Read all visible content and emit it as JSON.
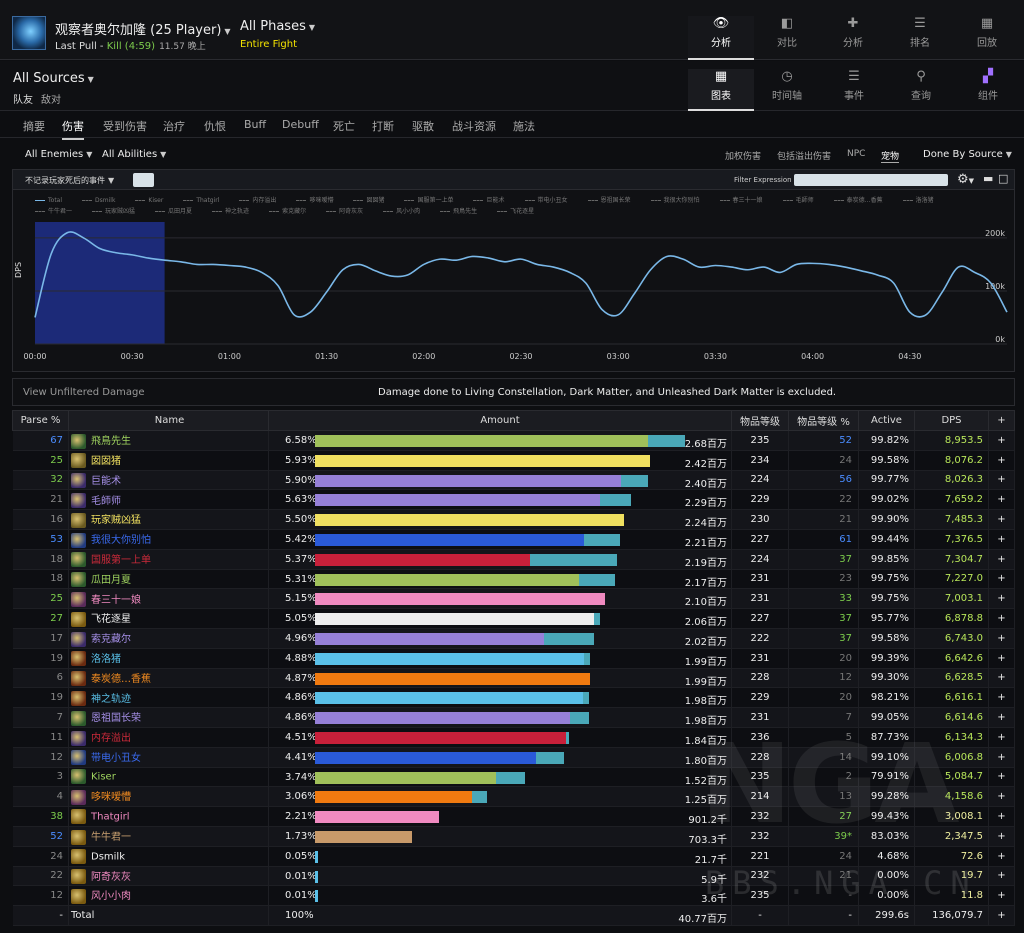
{
  "header": {
    "boss_name": "观察者奥尔加隆 (25 Player)",
    "pull_label": "Last Pull -",
    "pull_kill": "Kill (4:59)",
    "pull_sub": "11.57 晚上",
    "phases": "All Phases",
    "fight": "Entire Fight",
    "nav": [
      {
        "label": "分析",
        "icon": "eye-icon",
        "active": true
      },
      {
        "label": "对比",
        "icon": "compare-icon",
        "active": false
      },
      {
        "label": "分析",
        "icon": "puzzle-icon",
        "active": false
      },
      {
        "label": "排名",
        "icon": "ranking-icon",
        "active": false
      },
      {
        "label": "回放",
        "icon": "replay-icon",
        "active": false
      }
    ]
  },
  "sources": {
    "label": "All Sources",
    "party": "队友",
    "enemy": "敌对"
  },
  "views": [
    {
      "label": "图表",
      "icon": "table-icon",
      "active": true
    },
    {
      "label": "时间轴",
      "icon": "clock-icon",
      "active": false
    },
    {
      "label": "事件",
      "icon": "list-icon",
      "active": false
    },
    {
      "label": "查询",
      "icon": "pin-icon",
      "active": false
    },
    {
      "label": "组件",
      "icon": "components-icon",
      "active": false
    }
  ],
  "tabs": [
    "摘要",
    "伤害",
    "受到伤害",
    "治疗",
    "仇恨",
    "Buff",
    "Debuff",
    "死亡",
    "打断",
    "驱散",
    "战斗资源",
    "施法"
  ],
  "filters": {
    "enemies": "All Enemies",
    "abilities": "All Abilities",
    "right": [
      "加权伤害",
      "包括溢出伤害",
      "NPC",
      "宠物"
    ],
    "done_by": "Done By Source",
    "event_filter": "不记录玩家死后的事件",
    "filter_expression": "Filter Expression"
  },
  "chart_data": {
    "type": "line",
    "title": "",
    "ylabel": "DPS",
    "xlabel": "",
    "x_ticks": [
      "00:00",
      "00:30",
      "01:00",
      "01:30",
      "02:00",
      "02:30",
      "03:00",
      "03:30",
      "04:00",
      "04:30"
    ],
    "y_ticks": [
      "200k",
      "100k",
      "0k"
    ],
    "ylim": [
      0,
      230000
    ],
    "xlim": [
      0,
      300
    ],
    "selected_range": [
      0,
      40
    ],
    "legend": [
      "Total",
      "Dsmilk",
      "Kiser",
      "Thatgirl",
      "内存溢出",
      "哆咪嗳懵",
      "囡囡猪",
      "国服第一上单",
      "巨能术",
      "带电小丑女",
      "恩祖国长荣",
      "我很大你别怕",
      "春三十一娘",
      "毛師师",
      "泰炭德…香蕉",
      "洛洛猪",
      "牛牛君一",
      "玩家贼凶猛",
      "瓜田月夏",
      "神之轨迹",
      "索克藏尔",
      "阿奇灰灰",
      "风小小肉",
      "飛鳥先生",
      "飞花逐星"
    ],
    "series": [
      {
        "name": "Total",
        "x": [
          0,
          5,
          10,
          15,
          20,
          25,
          30,
          35,
          40,
          45,
          50,
          55,
          60,
          65,
          70,
          75,
          80,
          85,
          90,
          95,
          100,
          105,
          110,
          115,
          120,
          125,
          130,
          135,
          140,
          145,
          150,
          155,
          160,
          165,
          170,
          175,
          180,
          185,
          190,
          195,
          200,
          205,
          210,
          215,
          220,
          225,
          230,
          235,
          240,
          245,
          250,
          255,
          260,
          265,
          270,
          275,
          280,
          285,
          290,
          295,
          300
        ],
        "values": [
          50000,
          170000,
          210000,
          200000,
          180000,
          172000,
          168000,
          162000,
          158000,
          155000,
          150000,
          150000,
          148000,
          145000,
          135000,
          110000,
          55000,
          60000,
          98000,
          140000,
          150000,
          138000,
          128000,
          130000,
          150000,
          160000,
          158000,
          165000,
          162000,
          155000,
          160000,
          150000,
          145000,
          135000,
          115000,
          65000,
          55000,
          95000,
          140000,
          165000,
          160000,
          145000,
          148000,
          145000,
          140000,
          145000,
          135000,
          150000,
          152000,
          150000,
          145000,
          138000,
          130000,
          115000,
          60000,
          55000,
          98000,
          145000,
          135000,
          115000,
          60000
        ]
      }
    ]
  },
  "info": {
    "unfiltered": "View Unfiltered Damage",
    "excluded": "Damage done to Living Constellation, Dark Matter, and Unleashed Dark Matter is excluded."
  },
  "table": {
    "headers": [
      "Parse %",
      "Name",
      "Amount",
      "物品等级",
      "物品等级 %",
      "Active",
      "DPS",
      "+"
    ],
    "rows": [
      {
        "parse": "67",
        "parse_color": "#4a8cff",
        "name": "飛鳥先生",
        "name_color": "#9fd35f",
        "icon": "#2c5a2c",
        "pct": "6.58%",
        "frac": 1.0,
        "split": 0.9,
        "bar": "#a0c05a",
        "amount": "2.68百万",
        "ilvl": "235",
        "ilp": "52",
        "ilp_color": "#4a8cff",
        "active": "99.82%",
        "dps": "8,953.5",
        "dps_color": "#b8e65a"
      },
      {
        "parse": "25",
        "parse_color": "#7ccc4c",
        "name": "囡囡猪",
        "name_color": "#f0e060",
        "icon": "#6a5a20",
        "pct": "5.93%",
        "frac": 0.905,
        "split": 1.0,
        "bar": "#f0e060",
        "amount": "2.42百万",
        "ilvl": "234",
        "ilp": "24",
        "ilp_color": "#777",
        "active": "99.58%",
        "dps": "8,076.2",
        "dps_color": "#b8e65a"
      },
      {
        "parse": "32",
        "parse_color": "#7ccc4c",
        "name": "巨能术",
        "name_color": "#a690e8",
        "icon": "#3a2a6a",
        "pct": "5.90%",
        "frac": 0.9,
        "split": 0.92,
        "bar": "#9680d8",
        "amount": "2.40百万",
        "ilvl": "224",
        "ilp": "56",
        "ilp_color": "#4a8cff",
        "active": "99.77%",
        "dps": "8,026.3",
        "dps_color": "#b8e65a"
      },
      {
        "parse": "21",
        "parse_color": "#888",
        "name": "毛師师",
        "name_color": "#a690e8",
        "icon": "#3a2a6a",
        "pct": "5.63%",
        "frac": 0.855,
        "split": 0.9,
        "bar": "#9680d8",
        "amount": "2.29百万",
        "ilvl": "229",
        "ilp": "22",
        "ilp_color": "#777",
        "active": "99.02%",
        "dps": "7,659.2",
        "dps_color": "#b8e65a"
      },
      {
        "parse": "16",
        "parse_color": "#888",
        "name": "玩家贼凶猛",
        "name_color": "#f0e060",
        "icon": "#6a5a20",
        "pct": "5.50%",
        "frac": 0.836,
        "split": 1.0,
        "bar": "#f0e060",
        "amount": "2.24百万",
        "ilvl": "230",
        "ilp": "21",
        "ilp_color": "#777",
        "active": "99.90%",
        "dps": "7,485.3",
        "dps_color": "#b8e65a"
      },
      {
        "parse": "53",
        "parse_color": "#4a8cff",
        "name": "我很大你别怕",
        "name_color": "#3a6aee",
        "icon": "#203a80",
        "pct": "5.42%",
        "frac": 0.825,
        "split": 0.88,
        "bar": "#2a5ad8",
        "amount": "2.21百万",
        "ilvl": "227",
        "ilp": "61",
        "ilp_color": "#4a8cff",
        "active": "99.44%",
        "dps": "7,376.5",
        "dps_color": "#b8e65a"
      },
      {
        "parse": "18",
        "parse_color": "#888",
        "name": "国服第一上单",
        "name_color": "#cc2a3a",
        "icon": "#2c5a2c",
        "pct": "5.37%",
        "frac": 0.817,
        "split": 0.71,
        "bar": "#c8203a",
        "amount": "2.19百万",
        "ilvl": "224",
        "ilp": "37",
        "ilp_color": "#7ccc4c",
        "active": "99.85%",
        "dps": "7,304.7",
        "dps_color": "#b8e65a"
      },
      {
        "parse": "18",
        "parse_color": "#888",
        "name": "瓜田月夏",
        "name_color": "#9fd35f",
        "icon": "#2c5a2c",
        "pct": "5.31%",
        "frac": 0.81,
        "split": 0.88,
        "bar": "#a0c05a",
        "amount": "2.17百万",
        "ilvl": "231",
        "ilp": "23",
        "ilp_color": "#777",
        "active": "99.75%",
        "dps": "7,227.0",
        "dps_color": "#b8e65a"
      },
      {
        "parse": "25",
        "parse_color": "#7ccc4c",
        "name": "春三十一娘",
        "name_color": "#f08ac0",
        "icon": "#5a2a5a",
        "pct": "5.15%",
        "frac": 0.784,
        "split": 1.0,
        "bar": "#f08ac0",
        "amount": "2.10百万",
        "ilvl": "231",
        "ilp": "33",
        "ilp_color": "#7ccc4c",
        "active": "99.75%",
        "dps": "7,003.1",
        "dps_color": "#b8e65a"
      },
      {
        "parse": "27",
        "parse_color": "#7ccc4c",
        "name": "飞花逐星",
        "name_color": "#eeeeee",
        "icon": "#7a5a10",
        "pct": "5.05%",
        "frac": 0.769,
        "split": 0.98,
        "bar": "#eeeeee",
        "amount": "2.06百万",
        "ilvl": "227",
        "ilp": "37",
        "ilp_color": "#7ccc4c",
        "active": "95.77%",
        "dps": "6,878.8",
        "dps_color": "#b8e65a"
      },
      {
        "parse": "17",
        "parse_color": "#888",
        "name": "索克藏尔",
        "name_color": "#a690e8",
        "icon": "#3a2a6a",
        "pct": "4.96%",
        "frac": 0.754,
        "split": 0.82,
        "bar": "#9680d8",
        "amount": "2.02百万",
        "ilvl": "222",
        "ilp": "37",
        "ilp_color": "#7ccc4c",
        "active": "99.58%",
        "dps": "6,743.0",
        "dps_color": "#b8e65a"
      },
      {
        "parse": "19",
        "parse_color": "#888",
        "name": "洛洛猪",
        "name_color": "#5ac0e8",
        "icon": "#6a2a10",
        "pct": "4.88%",
        "frac": 0.743,
        "split": 0.98,
        "bar": "#5ac0e8",
        "amount": "1.99百万",
        "ilvl": "231",
        "ilp": "20",
        "ilp_color": "#777",
        "active": "99.39%",
        "dps": "6,642.6",
        "dps_color": "#b8e65a"
      },
      {
        "parse": "6",
        "parse_color": "#888",
        "name": "泰炭德…香蕉",
        "name_color": "#f08a20",
        "icon": "#6a2a10",
        "pct": "4.87%",
        "frac": 0.742,
        "split": 1.0,
        "bar": "#f07a10",
        "amount": "1.99百万",
        "ilvl": "228",
        "ilp": "12",
        "ilp_color": "#777",
        "active": "99.30%",
        "dps": "6,628.5",
        "dps_color": "#b8e65a"
      },
      {
        "parse": "19",
        "parse_color": "#888",
        "name": "神之轨迹",
        "name_color": "#5ac0e8",
        "icon": "#6a2a10",
        "pct": "4.86%",
        "frac": 0.74,
        "split": 0.98,
        "bar": "#5ac0e8",
        "amount": "1.98百万",
        "ilvl": "229",
        "ilp": "20",
        "ilp_color": "#777",
        "active": "98.21%",
        "dps": "6,616.1",
        "dps_color": "#b8e65a"
      },
      {
        "parse": "7",
        "parse_color": "#888",
        "name": "恩祖国长荣",
        "name_color": "#a690e8",
        "icon": "#2c5a2c",
        "pct": "4.86%",
        "frac": 0.74,
        "split": 0.93,
        "bar": "#9680d8",
        "amount": "1.98百万",
        "ilvl": "231",
        "ilp": "7",
        "ilp_color": "#777",
        "active": "99.05%",
        "dps": "6,614.6",
        "dps_color": "#b8e65a"
      },
      {
        "parse": "11",
        "parse_color": "#888",
        "name": "内存溢出",
        "name_color": "#cc2a3a",
        "icon": "#3a2a6a",
        "pct": "4.51%",
        "frac": 0.686,
        "split": 0.99,
        "bar": "#c8203a",
        "amount": "1.84百万",
        "ilvl": "236",
        "ilp": "5",
        "ilp_color": "#777",
        "active": "87.73%",
        "dps": "6,134.3",
        "dps_color": "#b8e65a"
      },
      {
        "parse": "12",
        "parse_color": "#888",
        "name": "带电小丑女",
        "name_color": "#3a6aee",
        "icon": "#203a80",
        "pct": "4.41%",
        "frac": 0.672,
        "split": 0.89,
        "bar": "#2a5ad8",
        "amount": "1.80百万",
        "ilvl": "228",
        "ilp": "14",
        "ilp_color": "#777",
        "active": "99.10%",
        "dps": "6,006.8",
        "dps_color": "#b8e65a"
      },
      {
        "parse": "3",
        "parse_color": "#888",
        "name": "Kiser",
        "name_color": "#9fd35f",
        "icon": "#2c5a2c",
        "pct": "3.74%",
        "frac": 0.568,
        "split": 0.86,
        "bar": "#a0c05a",
        "amount": "1.52百万",
        "ilvl": "235",
        "ilp": "2",
        "ilp_color": "#777",
        "active": "79.91%",
        "dps": "5,084.7",
        "dps_color": "#b8e65a"
      },
      {
        "parse": "4",
        "parse_color": "#888",
        "name": "哆咪嗳懵",
        "name_color": "#f08a20",
        "icon": "#5a2a5a",
        "pct": "3.06%",
        "frac": 0.466,
        "split": 0.91,
        "bar": "#f07a10",
        "amount": "1.25百万",
        "ilvl": "214",
        "ilp": "13",
        "ilp_color": "#777",
        "active": "99.28%",
        "dps": "4,158.6",
        "dps_color": "#b8e65a"
      },
      {
        "parse": "38",
        "parse_color": "#7ccc4c",
        "name": "Thatgirl",
        "name_color": "#f08ac0",
        "icon": "#7a5a10",
        "pct": "2.21%",
        "frac": 0.336,
        "split": 1.0,
        "bar": "#f08ac0",
        "amount": "901.2千",
        "ilvl": "232",
        "ilp": "27",
        "ilp_color": "#7ccc4c",
        "active": "99.43%",
        "dps": "3,008.1",
        "dps_color": "#f0f0a0"
      },
      {
        "parse": "52",
        "parse_color": "#4a8cff",
        "name": "牛牛君一",
        "name_color": "#c8a070",
        "icon": "#7a5a10",
        "pct": "1.73%",
        "frac": 0.262,
        "split": 1.0,
        "bar": "#c89a6a",
        "amount": "703.3千",
        "ilvl": "232",
        "ilp": "39*",
        "ilp_color": "#7ccc4c",
        "active": "83.03%",
        "dps": "2,347.5",
        "dps_color": "#f0f0a0"
      },
      {
        "parse": "24",
        "parse_color": "#888",
        "name": "Dsmilk",
        "name_color": "#eeeeee",
        "icon": "#7a5a10",
        "pct": "0.05%",
        "frac": 0.009,
        "split": 1.0,
        "bar": "#5ac0e8",
        "amount": "21.7千",
        "ilvl": "221",
        "ilp": "24",
        "ilp_color": "#777",
        "active": "4.68%",
        "dps": "72.6",
        "dps_color": "#f0f0a0"
      },
      {
        "parse": "22",
        "parse_color": "#888",
        "name": "阿奇灰灰",
        "name_color": "#f08ac0",
        "icon": "#7a5a10",
        "pct": "0.01%",
        "frac": 0.002,
        "split": 1.0,
        "bar": "#f08ac0",
        "amount": "5.9千",
        "ilvl": "232",
        "ilp": "21",
        "ilp_color": "#777",
        "active": "0.00%",
        "dps": "19.7",
        "dps_color": "#f0f0a0"
      },
      {
        "parse": "12",
        "parse_color": "#888",
        "name": "风小小肉",
        "name_color": "#f08ac0",
        "icon": "#7a5a10",
        "pct": "0.01%",
        "frac": 0.001,
        "split": 1.0,
        "bar": "#f08ac0",
        "amount": "3.6千",
        "ilvl": "235",
        "ilp": "-",
        "ilp_color": "#777",
        "active": "0.00%",
        "dps": "11.8",
        "dps_color": "#f0f0a0"
      }
    ],
    "total": {
      "parse": "-",
      "name": "Total",
      "pct": "100%",
      "amount": "40.77百万",
      "ilvl": "-",
      "ilp": "-",
      "active": "299.6s",
      "dps": "136,079.7"
    }
  },
  "watermark": {
    "logo": "NGA",
    "site": "BBS.NGA.CN"
  }
}
